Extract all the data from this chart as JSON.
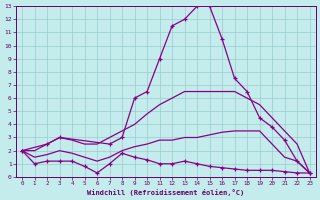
{
  "xlabel": "Windchill (Refroidissement éolien,°C)",
  "bg_color": "#c5ecec",
  "line_color": "#880088",
  "grid_color": "#99cccc",
  "text_color": "#660066",
  "axis_color": "#660066",
  "xlim": [
    -0.5,
    23.5
  ],
  "ylim": [
    0,
    13
  ],
  "xticks": [
    0,
    1,
    2,
    3,
    4,
    5,
    6,
    7,
    8,
    9,
    10,
    11,
    12,
    13,
    14,
    15,
    16,
    17,
    18,
    19,
    20,
    21,
    22,
    23
  ],
  "yticks": [
    0,
    1,
    2,
    3,
    4,
    5,
    6,
    7,
    8,
    9,
    10,
    11,
    12,
    13
  ],
  "lines": [
    {
      "x": [
        0,
        1,
        2,
        3,
        4,
        5,
        6,
        7,
        8,
        9,
        10,
        11,
        12,
        13,
        14,
        15,
        16,
        17,
        18,
        19,
        20,
        21,
        22,
        23
      ],
      "y": [
        2,
        1,
        1.2,
        1.2,
        1.2,
        0.8,
        0.3,
        1,
        1.8,
        1.5,
        1.3,
        1.0,
        1.0,
        1.2,
        1.0,
        0.8,
        0.7,
        0.6,
        0.5,
        0.5,
        0.5,
        0.4,
        0.3,
        0.3
      ],
      "marker": true
    },
    {
      "x": [
        0,
        1,
        2,
        3,
        4,
        5,
        6,
        7,
        8,
        9,
        10,
        11,
        12,
        13,
        14,
        15,
        16,
        17,
        18,
        19,
        20,
        21,
        22,
        23
      ],
      "y": [
        2,
        1.5,
        1.7,
        2,
        1.8,
        1.5,
        1.2,
        1.5,
        2.0,
        2.3,
        2.5,
        2.8,
        2.8,
        3.0,
        3.0,
        3.2,
        3.4,
        3.5,
        3.5,
        3.5,
        2.5,
        1.5,
        1.2,
        0.3
      ],
      "marker": false
    },
    {
      "x": [
        0,
        1,
        2,
        3,
        4,
        5,
        6,
        7,
        8,
        9,
        10,
        11,
        12,
        13,
        14,
        15,
        16,
        17,
        18,
        19,
        20,
        21,
        22,
        23
      ],
      "y": [
        2,
        2,
        2.5,
        3,
        2.8,
        2.5,
        2.5,
        3,
        3.5,
        4,
        4.8,
        5.5,
        6,
        6.5,
        6.5,
        6.5,
        6.5,
        6.5,
        6,
        5.5,
        4.5,
        3.5,
        2.5,
        0.3
      ],
      "marker": false
    },
    {
      "x": [
        0,
        2,
        3,
        7,
        8,
        9,
        10,
        11,
        12,
        13,
        14,
        15,
        16,
        17,
        18,
        19,
        20,
        21,
        22,
        23
      ],
      "y": [
        2,
        2.5,
        3,
        2.5,
        3,
        6,
        6.5,
        9,
        11.5,
        12,
        13,
        13,
        10.5,
        7.5,
        6.5,
        4.5,
        3.8,
        2.8,
        1.2,
        0.3
      ],
      "marker": true
    }
  ]
}
